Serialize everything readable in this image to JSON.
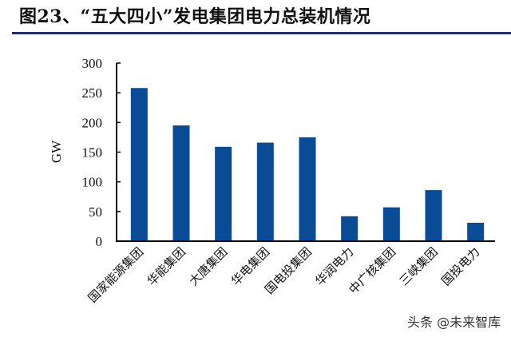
{
  "figure": {
    "title": "图23、“五大四小”发电集团电力总装机情况",
    "watermark": "头条 @未来智库",
    "bar_color": "#0a4b96",
    "rule_color": "#1f2f6b"
  },
  "chart_data": {
    "type": "bar",
    "title": "图23、“五大四小”发电集团电力总装机情况",
    "xlabel": "",
    "ylabel": "GW",
    "ylim": [
      0,
      300
    ],
    "yticks": [
      0,
      50,
      100,
      150,
      200,
      250,
      300
    ],
    "grid": false,
    "legend": null,
    "categories": [
      "国家能源集团",
      "华能集团",
      "大唐集团",
      "华电集团",
      "国电投集团",
      "华润电力",
      "中广核集团",
      "三峡集团",
      "国投电力"
    ],
    "values": [
      258,
      195,
      159,
      166,
      175,
      42,
      57,
      86,
      31
    ]
  }
}
